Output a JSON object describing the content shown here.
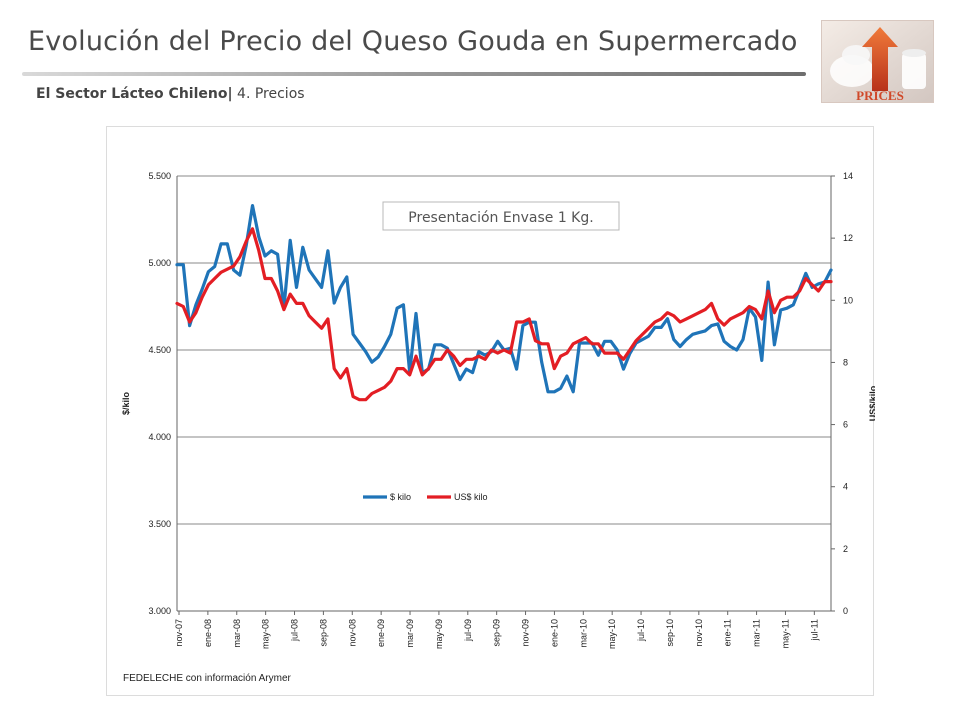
{
  "header": {
    "title": "Evolución del Precio del Queso Gouda en Supermercado",
    "subtitle_bold": "El Sector Lácteo Chileno|",
    "subtitle_rest": " 4. Precios"
  },
  "logo": {
    "text": "PRICES",
    "icon": "up-arrow-icon"
  },
  "source_note": "FEDELECHE con información Arymer",
  "chart_data": {
    "type": "line",
    "title": "",
    "annotation": "Presentación Envase 1 Kg.",
    "ylabel_left": "$/kilo",
    "ylabel_right": "US$/kilo",
    "ylim_left": [
      3000,
      5500
    ],
    "ylim_right": [
      0,
      14
    ],
    "yticks_left": [
      "3.000",
      "3.500",
      "4.000",
      "4.500",
      "5.000",
      "5.500"
    ],
    "yticks_right": [
      "0",
      "2",
      "4",
      "6",
      "8",
      "10",
      "12",
      "14"
    ],
    "grid": true,
    "legend_position": "center",
    "xlabels": [
      "nov-07",
      "ene-08",
      "mar-08",
      "may-08",
      "jul-08",
      "sep-08",
      "nov-08",
      "ene-09",
      "mar-09",
      "may-09",
      "jul-09",
      "sep-09",
      "nov-09",
      "ene-10",
      "mar-10",
      "may-10",
      "jul-10",
      "sep-10",
      "nov-10",
      "ene-11",
      "mar-11",
      "may-11",
      "jul-11"
    ],
    "points_per_month": 4,
    "series": [
      {
        "name": "$ kilo",
        "axis": "left",
        "color": "#1f74b8",
        "values": [
          4990,
          4990,
          4640,
          4760,
          4850,
          4950,
          4980,
          5110,
          5110,
          4960,
          4930,
          5100,
          5330,
          5150,
          5040,
          5070,
          5050,
          4740,
          5130,
          4860,
          5090,
          4960,
          4910,
          4860,
          5070,
          4770,
          4860,
          4920,
          4590,
          4540,
          4490,
          4430,
          4460,
          4520,
          4590,
          4740,
          4760,
          4370,
          4710,
          4370,
          4390,
          4530,
          4530,
          4510,
          4420,
          4330,
          4390,
          4370,
          4490,
          4470,
          4490,
          4550,
          4500,
          4510,
          4390,
          4640,
          4660,
          4660,
          4430,
          4260,
          4260,
          4280,
          4350,
          4260,
          4540,
          4540,
          4540,
          4470,
          4550,
          4550,
          4500,
          4390,
          4480,
          4540,
          4560,
          4580,
          4630,
          4630,
          4680,
          4560,
          4520,
          4560,
          4590,
          4600,
          4610,
          4640,
          4650,
          4550,
          4520,
          4500,
          4560,
          4740,
          4690,
          4440,
          4890,
          4530,
          4730,
          4740,
          4760,
          4850,
          4940,
          4860,
          4880,
          4890,
          4960
        ]
      },
      {
        "name": "US$ kilo",
        "axis": "right",
        "color": "#e31e24",
        "values": [
          9.9,
          9.8,
          9.3,
          9.6,
          10.1,
          10.5,
          10.7,
          10.9,
          11.0,
          11.1,
          11.4,
          11.9,
          12.3,
          11.6,
          10.7,
          10.7,
          10.3,
          9.7,
          10.2,
          9.9,
          9.9,
          9.5,
          9.3,
          9.1,
          9.4,
          7.8,
          7.5,
          7.8,
          6.9,
          6.8,
          6.8,
          7.0,
          7.1,
          7.2,
          7.4,
          7.8,
          7.8,
          7.6,
          8.2,
          7.6,
          7.8,
          8.1,
          8.1,
          8.4,
          8.2,
          7.9,
          8.1,
          8.1,
          8.2,
          8.1,
          8.4,
          8.3,
          8.4,
          8.3,
          9.3,
          9.3,
          9.4,
          8.7,
          8.6,
          8.6,
          7.8,
          8.2,
          8.3,
          8.6,
          8.7,
          8.8,
          8.6,
          8.6,
          8.3,
          8.3,
          8.3,
          8.1,
          8.4,
          8.7,
          8.9,
          9.1,
          9.3,
          9.4,
          9.6,
          9.5,
          9.3,
          9.4,
          9.5,
          9.6,
          9.7,
          9.9,
          9.4,
          9.2,
          9.4,
          9.5,
          9.6,
          9.8,
          9.7,
          9.4,
          10.3,
          9.6,
          10.0,
          10.1,
          10.1,
          10.3,
          10.7,
          10.5,
          10.3,
          10.6,
          10.6
        ]
      }
    ]
  }
}
